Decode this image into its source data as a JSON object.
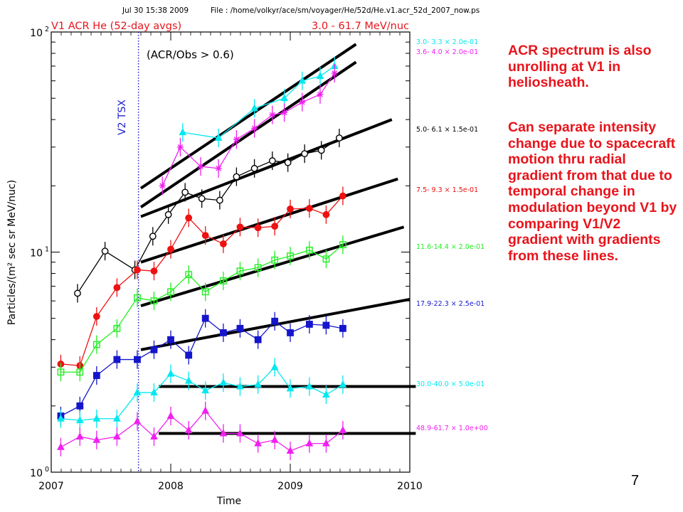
{
  "header": {
    "timestamp": "Jul 30 15:38 2009",
    "file": "File : /home/volkyr/ace/sm/voyager/He/52d/He.v1.acr_52d_2007_now.ps",
    "title_left": "V1 ACR He (52-day avgs)",
    "title_right": "3.0 - 61.7 MeV/nuc"
  },
  "annotations": {
    "inset": "(ACR/Obs > 0.6)",
    "vline_label": "V2 TSX",
    "note1": "ACR spectrum is also unrolling at V1 in heliosheath.",
    "note2": "Can separate intensity change due to spacecraft motion thru radial gradient from that due to temporal change in modulation beyond V1 by comparing V1/V2 gradient with gradients from these lines."
  },
  "slide_number": "7",
  "colors": {
    "cyan": "#00e8f0",
    "magenta": "#f020f0",
    "black": "#000000",
    "red": "#ee1111",
    "green": "#22ee22",
    "blue": "#1515cc",
    "vline": "#2222cc",
    "note": "#e8141c"
  },
  "chart_data": {
    "type": "line",
    "xlabel": "Time",
    "ylabel": "Particles/(m² sec sr MeV/nuc)",
    "xlim": [
      2007,
      2010
    ],
    "ylim": [
      1,
      100
    ],
    "yscale": "log",
    "x_ticks": [
      "2007",
      "2008",
      "2009",
      "2010"
    ],
    "y_ticks": [
      {
        "base": "10",
        "exp": "0"
      },
      {
        "base": "10",
        "exp": "1"
      },
      {
        "base": "10",
        "exp": "2"
      }
    ],
    "vline_x": 2007.73,
    "series": [
      {
        "name": "3.0- 3.3 × 2.0e-01",
        "color": "cyan",
        "marker": "tri",
        "x": [
          2008.1,
          2008.4,
          2008.7,
          2008.95,
          2009.1,
          2009.25,
          2009.37
        ],
        "y": [
          35,
          33,
          45,
          50,
          60,
          63,
          70
        ]
      },
      {
        "name": "3.6- 4.0 × 2.0e-01",
        "color": "magenta",
        "marker": "star",
        "x": [
          2007.93,
          2008.08,
          2008.25,
          2008.4,
          2008.55,
          2008.7,
          2008.85,
          2008.95,
          2009.1,
          2009.25,
          2009.37
        ],
        "y": [
          20,
          30,
          24.5,
          24,
          32.5,
          36.5,
          42,
          43,
          48,
          52,
          65
        ]
      },
      {
        "name": "5.0- 6.1 × 1.5e-01",
        "color": "black",
        "marker": "circle",
        "x": [
          2007.22,
          2007.45,
          2007.7,
          2007.85,
          2007.98,
          2008.12,
          2008.26,
          2008.41,
          2008.55,
          2008.7,
          2008.85,
          2008.98,
          2009.12,
          2009.26,
          2009.41
        ],
        "y": [
          6.5,
          10.1,
          8.3,
          11.8,
          14.8,
          18.7,
          17.5,
          17.2,
          22,
          24,
          26,
          25.5,
          28,
          29,
          33
        ]
      },
      {
        "name": "7.5- 9.3 × 1.5e-01",
        "color": "red",
        "marker": "dot",
        "x": [
          2007.08,
          2007.24,
          2007.38,
          2007.55,
          2007.72,
          2007.86,
          2008.0,
          2008.15,
          2008.29,
          2008.44,
          2008.58,
          2008.73,
          2008.87,
          2009.0,
          2009.16,
          2009.3,
          2009.44
        ],
        "y": [
          3.1,
          3.05,
          5.1,
          6.9,
          8.3,
          8.2,
          10.3,
          14.3,
          11.9,
          10.9,
          13,
          12.9,
          13.1,
          15.7,
          15.8,
          14.8,
          18
        ]
      },
      {
        "name": "11.6-14.4 × 2.0e-01",
        "color": "green",
        "marker": "square",
        "x": [
          2007.08,
          2007.24,
          2007.38,
          2007.55,
          2007.72,
          2007.86,
          2008.0,
          2008.15,
          2008.29,
          2008.44,
          2008.58,
          2008.73,
          2008.87,
          2009.0,
          2009.16,
          2009.3,
          2009.44
        ],
        "y": [
          2.85,
          2.85,
          3.8,
          4.5,
          6.2,
          6.0,
          6.6,
          7.9,
          6.6,
          7.4,
          8.2,
          8.5,
          9.2,
          9.6,
          10.2,
          9.3,
          10.8
        ]
      },
      {
        "name": "17.9-22.3 × 2.5e-01",
        "color": "blue",
        "marker": "square",
        "x": [
          2007.08,
          2007.24,
          2007.38,
          2007.55,
          2007.72,
          2007.86,
          2008.0,
          2008.15,
          2008.29,
          2008.44,
          2008.58,
          2008.73,
          2008.87,
          2009.0,
          2009.16,
          2009.3,
          2009.44
        ],
        "y": [
          1.8,
          2.0,
          2.75,
          3.25,
          3.25,
          3.6,
          4.0,
          3.4,
          5.0,
          4.3,
          4.5,
          4.0,
          4.85,
          4.3,
          4.7,
          4.65,
          4.5
        ]
      },
      {
        "name": "30.0-40.0 × 5.0e-01",
        "color": "cyan",
        "marker": "tri",
        "x": [
          2007.08,
          2007.24,
          2007.38,
          2007.55,
          2007.72,
          2007.86,
          2008.0,
          2008.15,
          2008.29,
          2008.44,
          2008.58,
          2008.73,
          2008.87,
          2009.0,
          2009.16,
          2009.3,
          2009.44
        ],
        "y": [
          1.75,
          1.72,
          1.75,
          1.75,
          2.3,
          2.3,
          2.8,
          2.6,
          2.35,
          2.55,
          2.45,
          2.5,
          3.0,
          2.4,
          2.45,
          2.25,
          2.5
        ]
      },
      {
        "name": "48.9-61.7 × 1.0e+00",
        "color": "magenta",
        "marker": "tri",
        "x": [
          2007.08,
          2007.24,
          2007.38,
          2007.55,
          2007.72,
          2007.86,
          2008.0,
          2008.15,
          2008.29,
          2008.44,
          2008.58,
          2008.73,
          2008.87,
          2009.0,
          2009.16,
          2009.3,
          2009.44
        ],
        "y": [
          1.3,
          1.45,
          1.4,
          1.45,
          1.7,
          1.45,
          1.8,
          1.55,
          1.9,
          1.5,
          1.5,
          1.35,
          1.4,
          1.25,
          1.35,
          1.35,
          1.55
        ]
      }
    ],
    "fit_lines": [
      {
        "x": [
          2007.75,
          2009.55
        ],
        "y": [
          19.5,
          88
        ]
      },
      {
        "x": [
          2007.75,
          2009.55
        ],
        "y": [
          16,
          73
        ]
      },
      {
        "x": [
          2007.75,
          2009.85
        ],
        "y": [
          14.5,
          40
        ]
      },
      {
        "x": [
          2007.75,
          2009.9
        ],
        "y": [
          9,
          21.5
        ]
      },
      {
        "x": [
          2007.75,
          2009.95
        ],
        "y": [
          5.7,
          13
        ]
      },
      {
        "x": [
          2007.75,
          2010.0
        ],
        "y": [
          3.6,
          6.1
        ]
      },
      {
        "x": [
          2007.9,
          2010.05
        ],
        "y": [
          2.45,
          2.45
        ]
      },
      {
        "x": [
          2007.9,
          2010.05
        ],
        "y": [
          1.5,
          1.5
        ]
      }
    ]
  }
}
